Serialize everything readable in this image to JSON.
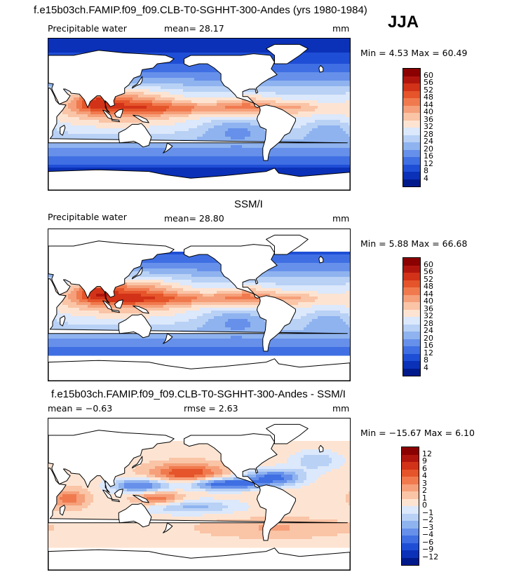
{
  "header": {
    "title": "f.e15b03ch.FAMIP.f09_f09.CLB-T0-SGHHT-300-Andes (yrs 1980-1984)",
    "season": "JJA"
  },
  "panels": [
    {
      "heading": "",
      "left_label": "Precipitable water",
      "mid_label": "mean=  28.17",
      "right_label": "mm",
      "minmax": "Min =   4.53 Max =  60.49",
      "colorbar_ticks": [
        "60",
        "56",
        "52",
        "48",
        "44",
        "40",
        "36",
        "32",
        "28",
        "24",
        "20",
        "16",
        "12",
        "8",
        "4"
      ]
    },
    {
      "heading": "SSM/I",
      "left_label": "Precipitable water",
      "mid_label": "mean=  28.80",
      "right_label": "mm",
      "minmax": "Min =   5.88 Max =  66.68",
      "colorbar_ticks": [
        "60",
        "56",
        "52",
        "48",
        "44",
        "40",
        "36",
        "32",
        "28",
        "24",
        "20",
        "16",
        "12",
        "8",
        "4"
      ]
    },
    {
      "heading": "f.e15b03ch.FAMIP.f09_f09.CLB-T0-SGHHT-300-Andes - SSM/I",
      "left_label": "mean =  −0.63",
      "mid_label": "rmse =   2.63",
      "right_label": "mm",
      "minmax": "Min = −15.67 Max =   6.10",
      "colorbar_ticks": [
        "12",
        "9",
        "6",
        "4",
        "3",
        "2",
        "1",
        "0",
        "−1",
        "−2",
        "−3",
        "−4",
        "−6",
        "−9",
        "−12"
      ]
    }
  ],
  "colors": {
    "scale": [
      "#8b0000",
      "#b0150d",
      "#d23218",
      "#e5542a",
      "#f07a4e",
      "#f5a07a",
      "#fac4a6",
      "#fde4d2",
      "#dce8fb",
      "#b8d1f5",
      "#8fb3ef",
      "#6690ea",
      "#3f6fe3",
      "#1f4ed6",
      "#0b31b8",
      "#001a8c"
    ],
    "land": "#ffffff",
    "coast": "#000000"
  },
  "chart_data": [
    {
      "type": "heatmap",
      "title": "Precipitable water",
      "subtitle": "f.e15b03ch.FAMIP.f09_f09.CLB-T0-SGHHT-300-Andes (yrs 1980-1984) JJA",
      "units": "mm",
      "mean": 28.17,
      "min": 4.53,
      "max": 60.49,
      "contour_levels": [
        4,
        8,
        12,
        16,
        20,
        24,
        28,
        32,
        36,
        40,
        44,
        48,
        52,
        56,
        60
      ]
    },
    {
      "type": "heatmap",
      "title": "SSM/I Precipitable water",
      "units": "mm",
      "mean": 28.8,
      "min": 5.88,
      "max": 66.68,
      "contour_levels": [
        4,
        8,
        12,
        16,
        20,
        24,
        28,
        32,
        36,
        40,
        44,
        48,
        52,
        56,
        60
      ]
    },
    {
      "type": "heatmap",
      "title": "f.e15b03ch.FAMIP.f09_f09.CLB-T0-SGHHT-300-Andes - SSM/I",
      "units": "mm",
      "mean": -0.63,
      "rmse": 2.63,
      "min": -15.67,
      "max": 6.1,
      "contour_levels": [
        -12,
        -9,
        -6,
        -4,
        -3,
        -2,
        -1,
        0,
        1,
        2,
        3,
        4,
        6,
        9,
        12
      ]
    }
  ]
}
